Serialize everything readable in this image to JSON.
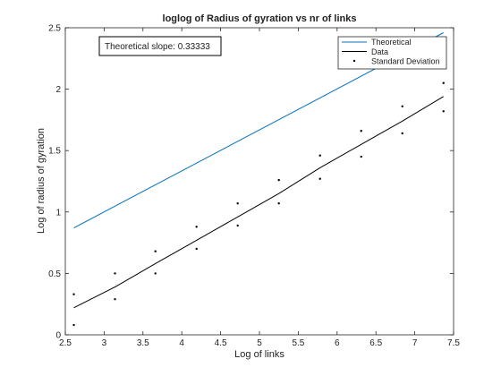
{
  "chart_data": {
    "type": "line",
    "title": "loglog of Radius of gyration vs nr of links",
    "xlabel": "Log of links",
    "ylabel": "Log of radius of gyration",
    "xlim": [
      2.5,
      7.5
    ],
    "ylim": [
      0,
      2.5
    ],
    "xticks": [
      "2.5",
      "3",
      "3.5",
      "4",
      "4.5",
      "5",
      "5.5",
      "6",
      "6.5",
      "7",
      "7.5"
    ],
    "yticks": [
      "0",
      "0.5",
      "1",
      "1.5",
      "2",
      "2.5"
    ],
    "grid": false,
    "legend": "top-right",
    "annotation": "Theoretical slope: 0.33333",
    "series": [
      {
        "name": "Theoretical",
        "kind": "line",
        "color": "#0072BD",
        "x": [
          2.61,
          7.37
        ],
        "y": [
          0.87,
          2.46
        ]
      },
      {
        "name": "Data",
        "kind": "line",
        "color": "#000000",
        "x": [
          2.61,
          3.14,
          3.66,
          4.19,
          4.72,
          5.25,
          5.78,
          6.31,
          6.84,
          7.37
        ],
        "y": [
          0.22,
          0.39,
          0.58,
          0.77,
          0.96,
          1.15,
          1.36,
          1.55,
          1.74,
          1.94
        ]
      },
      {
        "name": "Standard Deviation",
        "kind": "markers",
        "color": "#000000",
        "x": [
          2.61,
          2.61,
          3.14,
          3.14,
          3.66,
          3.66,
          4.19,
          4.19,
          4.72,
          4.72,
          5.25,
          5.25,
          5.78,
          5.78,
          6.31,
          6.31,
          6.84,
          6.84,
          7.37,
          7.37
        ],
        "y": [
          0.33,
          0.08,
          0.5,
          0.29,
          0.68,
          0.5,
          0.88,
          0.7,
          1.07,
          0.89,
          1.26,
          1.07,
          1.46,
          1.27,
          1.66,
          1.45,
          1.86,
          1.64,
          2.05,
          1.82
        ]
      }
    ]
  }
}
